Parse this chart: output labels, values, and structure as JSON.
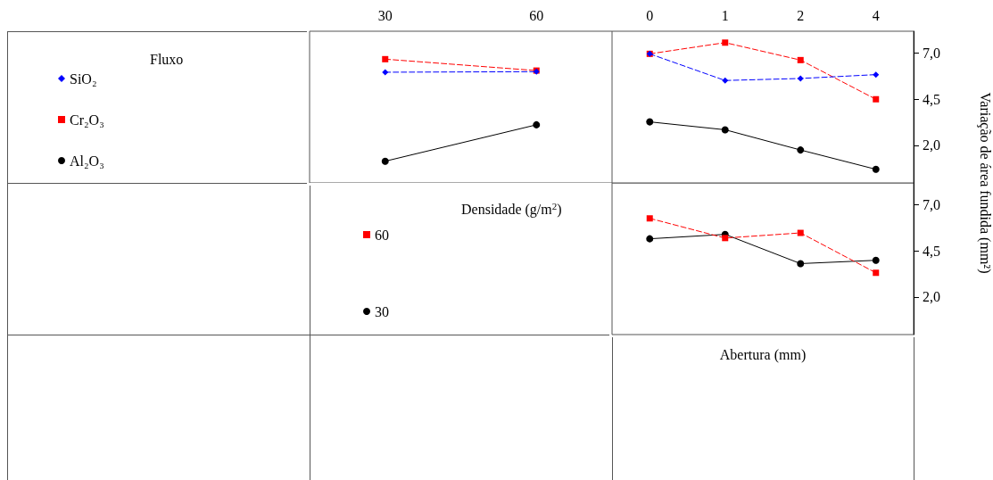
{
  "chart_data": [
    {
      "type": "line",
      "categories": [
        "30",
        "60"
      ],
      "ylim": [
        -0.05,
        8.2
      ],
      "tick_labels": "x",
      "legend": "left",
      "legend_title": "Fluxo",
      "grid": false,
      "series": [
        {
          "name": "SiO₂",
          "color": "#0000ff",
          "marker": "diamond",
          "line_style": "dashed",
          "values": [
            5.97,
            6.0
          ]
        },
        {
          "name": "Cr₂O₃",
          "color": "#ff0000",
          "marker": "square",
          "line_style": "dashed",
          "values": [
            6.68,
            6.06
          ]
        },
        {
          "name": "Al₂O₃",
          "color": "#000000",
          "marker": "circle",
          "line_style": "solid",
          "values": [
            1.13,
            3.11
          ]
        }
      ]
    },
    {
      "type": "line",
      "categories": [
        "0",
        "1",
        "2",
        "4"
      ],
      "ylim": [
        -0.05,
        8.2
      ],
      "yticks": [
        {
          "value": 2,
          "label": "2,0"
        },
        {
          "value": 4.5,
          "label": "4,5"
        },
        {
          "value": 7,
          "label": "7,0"
        }
      ],
      "ylabel": "Variação de área fundida (mm²)",
      "legend": false,
      "grid": false,
      "series": [
        {
          "color": "#0000ff",
          "marker": "diamond",
          "line_style": "dashed",
          "values": [
            6.97,
            5.52,
            5.63,
            5.84
          ]
        },
        {
          "color": "#ff0000",
          "marker": "square",
          "line_style": "dashed",
          "values": [
            6.97,
            7.58,
            6.63,
            4.5
          ]
        },
        {
          "color": "#000000",
          "marker": "circle",
          "line_style": "solid",
          "values": [
            3.27,
            2.84,
            1.74,
            0.69
          ]
        }
      ]
    },
    {
      "type": "line",
      "categories": [
        "0",
        "1",
        "2",
        "4"
      ],
      "ylim": [
        -0.05,
        8.2
      ],
      "yticks": [
        {
          "value": 2,
          "label": "2,0"
        },
        {
          "value": 4.5,
          "label": "4,5"
        },
        {
          "value": 7,
          "label": "7,0"
        }
      ],
      "tick_labels": "y",
      "xlabel": "Abertura (mm)",
      "legend": "left",
      "legend_title": "Densidade (g/m$^{2}$)",
      "grid": false,
      "series": [
        {
          "name": "60",
          "color": "#ff0000",
          "marker": "square",
          "line_style": "dashed",
          "values": [
            6.27,
            5.2,
            5.48,
            3.31
          ]
        },
        {
          "name": "30",
          "color": "#000000",
          "marker": "circle",
          "line_style": "solid",
          "values": [
            5.16,
            5.4,
            3.81,
            3.99
          ]
        }
      ]
    }
  ]
}
